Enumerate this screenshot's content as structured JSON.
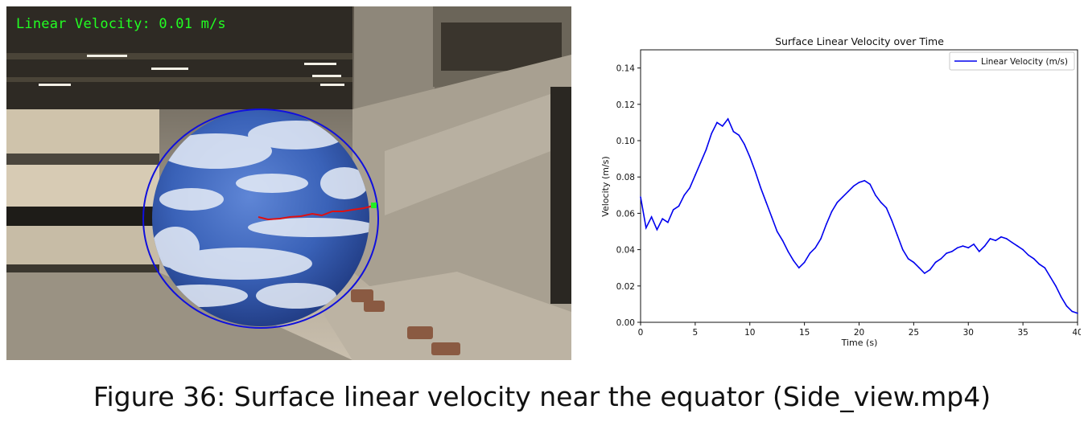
{
  "video": {
    "overlay_label": "Linear Velocity: 0.01 m/s",
    "colors": {
      "overlay_text": "#22ff22",
      "circle": "#1010dd",
      "trajectory": "#e01010",
      "marker": "#22ee22"
    }
  },
  "chart_data": {
    "type": "line",
    "title": "Surface Linear Velocity over Time",
    "xlabel": "Time (s)",
    "ylabel": "Velocity (m/s)",
    "xlim": [
      0,
      40
    ],
    "ylim": [
      0,
      0.15
    ],
    "xticks": [
      0,
      5,
      10,
      15,
      20,
      25,
      30,
      35,
      40
    ],
    "yticks": [
      0.0,
      0.02,
      0.04,
      0.06,
      0.08,
      0.1,
      0.12,
      0.14
    ],
    "xtick_labels": [
      "0",
      "5",
      "10",
      "15",
      "20",
      "25",
      "30",
      "35",
      "40"
    ],
    "ytick_labels": [
      "0.00",
      "0.02",
      "0.04",
      "0.06",
      "0.08",
      "0.10",
      "0.12",
      "0.14"
    ],
    "grid": false,
    "legend_position": "top-right",
    "series": [
      {
        "name": "Linear Velocity (m/s)",
        "color": "#0000ee",
        "x": [
          0,
          0.5,
          1,
          1.5,
          2,
          2.5,
          3,
          3.5,
          4,
          4.5,
          5,
          5.5,
          6,
          6.5,
          7,
          7.5,
          8,
          8.5,
          9,
          9.5,
          10,
          10.5,
          11,
          11.5,
          12,
          12.5,
          13,
          13.5,
          14,
          14.5,
          15,
          15.5,
          16,
          16.5,
          17,
          17.5,
          18,
          18.5,
          19,
          19.5,
          20,
          20.5,
          21,
          21.5,
          22,
          22.5,
          23,
          23.5,
          24,
          24.5,
          25,
          25.5,
          26,
          26.5,
          27,
          27.5,
          28,
          28.5,
          29,
          29.5,
          30,
          30.5,
          31,
          31.5,
          32,
          32.5,
          33,
          33.5,
          34,
          34.5,
          35,
          35.5,
          36,
          36.5,
          37,
          37.5,
          38,
          38.5,
          39,
          39.5,
          40
        ],
        "y": [
          0.069,
          0.052,
          0.058,
          0.051,
          0.057,
          0.055,
          0.062,
          0.064,
          0.07,
          0.074,
          0.081,
          0.088,
          0.095,
          0.104,
          0.11,
          0.108,
          0.112,
          0.105,
          0.103,
          0.098,
          0.091,
          0.083,
          0.074,
          0.066,
          0.058,
          0.05,
          0.045,
          0.039,
          0.034,
          0.03,
          0.033,
          0.038,
          0.041,
          0.046,
          0.054,
          0.061,
          0.066,
          0.069,
          0.072,
          0.075,
          0.077,
          0.078,
          0.076,
          0.07,
          0.066,
          0.063,
          0.056,
          0.048,
          0.04,
          0.035,
          0.033,
          0.03,
          0.027,
          0.029,
          0.033,
          0.035,
          0.038,
          0.039,
          0.041,
          0.042,
          0.041,
          0.043,
          0.039,
          0.042,
          0.046,
          0.045,
          0.047,
          0.046,
          0.044,
          0.042,
          0.04,
          0.037,
          0.035,
          0.032,
          0.03,
          0.025,
          0.02,
          0.014,
          0.009,
          0.006,
          0.005
        ]
      }
    ]
  },
  "caption": "Figure 36: Surface linear velocity near the equator (Side_view.mp4)"
}
